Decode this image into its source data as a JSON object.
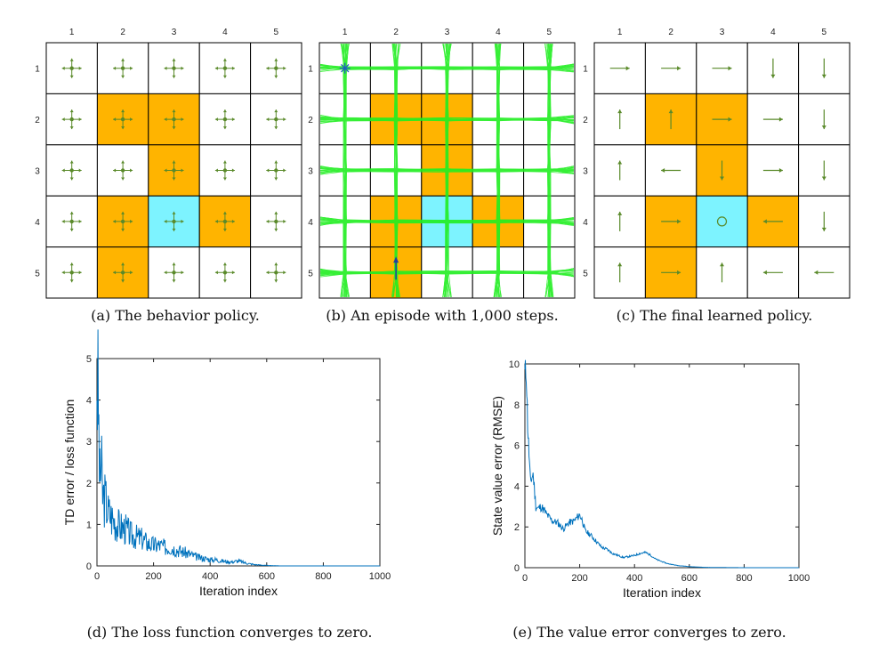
{
  "grid": {
    "col_labels": [
      "1",
      "2",
      "3",
      "4",
      "5"
    ],
    "row_labels": [
      "1",
      "2",
      "3",
      "4",
      "5"
    ],
    "colors": {
      "forbidden": "#ffb400",
      "target": "#7df3ff",
      "line": "#000000",
      "arrow": "#5a8a2a",
      "trajectory": "#22ee22"
    },
    "forbidden_cells": [
      [
        2,
        2
      ],
      [
        2,
        3
      ],
      [
        3,
        3
      ],
      [
        4,
        2
      ],
      [
        4,
        4
      ],
      [
        5,
        2
      ]
    ],
    "target_cell": [
      4,
      3
    ],
    "panels": [
      {
        "id": "a",
        "caption": "(a) The behavior policy.",
        "kind": "behavior"
      },
      {
        "id": "b",
        "caption": "(b) An episode with 1,000 steps.",
        "kind": "episode",
        "start_cell": [
          1,
          1
        ],
        "end_cell": [
          5,
          2
        ]
      },
      {
        "id": "c",
        "caption": "(c) The final learned policy.",
        "kind": "learned",
        "policy": [
          [
            "right",
            "right",
            "right",
            "down",
            "down"
          ],
          [
            "up",
            "up",
            "right",
            "right",
            "down"
          ],
          [
            "up",
            "left",
            "down",
            "right",
            "down"
          ],
          [
            "up",
            "right",
            "stay",
            "left",
            "down"
          ],
          [
            "up",
            "right",
            "up",
            "left",
            "left"
          ]
        ]
      }
    ]
  },
  "chart_data": [
    {
      "type": "line",
      "caption": "(d) The loss function converges to zero.",
      "xlabel": "Iteration index",
      "ylabel": "TD error / loss function",
      "xlim": [
        0,
        1000
      ],
      "ylim": [
        0,
        5
      ],
      "xticks": [
        0,
        200,
        400,
        600,
        800,
        1000
      ],
      "yticks": [
        0,
        1,
        2,
        3,
        4,
        5
      ],
      "color": "#0072bd",
      "series": [
        {
          "name": "TD error",
          "x": [
            0,
            5,
            10,
            15,
            20,
            30,
            40,
            50,
            60,
            80,
            100,
            120,
            140,
            160,
            180,
            200,
            220,
            240,
            260,
            280,
            300,
            320,
            340,
            360,
            380,
            400,
            420,
            440,
            460,
            480,
            500,
            520,
            540,
            560,
            580,
            600,
            650,
            700,
            800,
            900,
            1000
          ],
          "y": [
            4.7,
            3.8,
            2.0,
            2.5,
            1.7,
            1.6,
            1.3,
            1.2,
            1.1,
            0.95,
            0.9,
            0.75,
            0.7,
            0.65,
            0.55,
            0.5,
            0.5,
            0.45,
            0.45,
            0.4,
            0.35,
            0.3,
            0.25,
            0.2,
            0.18,
            0.15,
            0.15,
            0.12,
            0.1,
            0.1,
            0.12,
            0.08,
            0.05,
            0.03,
            0.02,
            0.01,
            0.0,
            0.0,
            0.0,
            0.0,
            0.0
          ]
        }
      ]
    },
    {
      "type": "line",
      "caption": "(e) The value error converges to zero.",
      "xlabel": "Iteration index",
      "ylabel": "State value error (RMSE)",
      "xlim": [
        0,
        1000
      ],
      "ylim": [
        0,
        10
      ],
      "xticks": [
        0,
        200,
        400,
        600,
        800,
        1000
      ],
      "yticks": [
        0,
        2,
        4,
        6,
        8,
        10
      ],
      "color": "#0072bd",
      "series": [
        {
          "name": "RMSE",
          "x": [
            0,
            5,
            10,
            15,
            20,
            30,
            40,
            50,
            60,
            80,
            100,
            120,
            140,
            160,
            180,
            200,
            210,
            220,
            240,
            260,
            280,
            300,
            320,
            340,
            360,
            380,
            400,
            420,
            440,
            460,
            480,
            500,
            520,
            540,
            560,
            580,
            600,
            650,
            700,
            800,
            900,
            1000
          ],
          "y": [
            9.5,
            9.7,
            7.0,
            5.6,
            4.2,
            4.6,
            3.0,
            2.9,
            3.0,
            2.6,
            2.3,
            2.2,
            1.9,
            2.2,
            2.3,
            2.6,
            2.3,
            1.8,
            1.6,
            1.3,
            1.0,
            0.9,
            0.7,
            0.6,
            0.5,
            0.55,
            0.6,
            0.7,
            0.75,
            0.6,
            0.4,
            0.3,
            0.2,
            0.15,
            0.1,
            0.08,
            0.05,
            0.02,
            0.01,
            0.0,
            0.0,
            0.0
          ]
        }
      ]
    }
  ]
}
